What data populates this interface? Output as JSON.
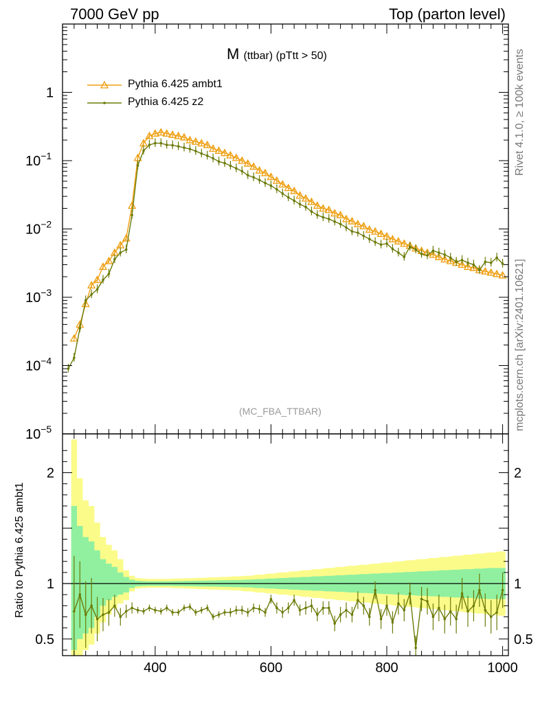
{
  "header": {
    "left": "7000 GeV pp",
    "right": "Top (parton level)"
  },
  "side_labels": {
    "rivet": "Rivet 4.1.0, ≥ 100k events",
    "mcplots": "mcplots.cern.ch [arXiv:2401.10621]"
  },
  "colors": {
    "ambt1": "#ee9f11",
    "z2": "#6b7a06",
    "band_inner": "#90f0a0",
    "band_outer": "#fbfb8a",
    "axis": "#000000"
  },
  "chart_data": [
    {
      "type": "line",
      "title": "M",
      "title_sub": "(ttbar) (pTtt > 50)",
      "annotation": "(MC_FBA_TTBAR)",
      "xlim": [
        240,
        1010
      ],
      "ylim": [
        1e-05,
        10
      ],
      "yscale": "log",
      "ylabel": "",
      "y_tick_labels": [
        "1",
        "10^{-1}",
        "10^{-2}",
        "10^{-3}",
        "10^{-4}",
        "10^{-5}"
      ],
      "legend": [
        "Pythia 6.425 ambt1",
        "Pythia 6.425 z2"
      ],
      "legend_position": "top-left",
      "series": [
        {
          "name": "Pythia 6.425 ambt1",
          "marker": "triangle",
          "x": [
            260,
            270,
            280,
            290,
            300,
            310,
            320,
            330,
            340,
            350,
            360,
            370,
            380,
            390,
            400,
            410,
            420,
            430,
            440,
            450,
            460,
            470,
            480,
            490,
            500,
            510,
            520,
            530,
            540,
            550,
            560,
            570,
            580,
            590,
            600,
            610,
            620,
            630,
            640,
            650,
            660,
            670,
            680,
            690,
            700,
            710,
            720,
            730,
            740,
            750,
            760,
            770,
            780,
            790,
            800,
            810,
            820,
            830,
            840,
            850,
            860,
            870,
            880,
            890,
            900,
            910,
            920,
            930,
            940,
            950,
            960,
            970,
            980,
            990,
            1000
          ],
          "y": [
            0.00025,
            0.0004,
            0.0008,
            0.0015,
            0.0018,
            0.0028,
            0.0034,
            0.0045,
            0.0058,
            0.0073,
            0.022,
            0.11,
            0.18,
            0.23,
            0.25,
            0.26,
            0.25,
            0.24,
            0.23,
            0.22,
            0.2,
            0.19,
            0.18,
            0.17,
            0.15,
            0.14,
            0.13,
            0.12,
            0.11,
            0.1,
            0.091,
            0.082,
            0.072,
            0.066,
            0.058,
            0.051,
            0.045,
            0.04,
            0.036,
            0.031,
            0.028,
            0.025,
            0.022,
            0.02,
            0.019,
            0.017,
            0.016,
            0.014,
            0.013,
            0.0118,
            0.011,
            0.0098,
            0.0092,
            0.0085,
            0.0078,
            0.0071,
            0.0066,
            0.0061,
            0.0057,
            0.0052,
            0.0048,
            0.0045,
            0.0042,
            0.0039,
            0.0036,
            0.0034,
            0.0032,
            0.003,
            0.0028,
            0.0027,
            0.0025,
            0.0024,
            0.0023,
            0.0022,
            0.0021
          ],
          "err_frac": 0.08
        },
        {
          "name": "Pythia 6.425 z2",
          "marker": "dot",
          "x": [
            250,
            260,
            270,
            280,
            290,
            300,
            310,
            320,
            330,
            340,
            350,
            360,
            370,
            380,
            390,
            400,
            410,
            420,
            430,
            440,
            450,
            460,
            470,
            480,
            490,
            500,
            510,
            520,
            530,
            540,
            550,
            560,
            570,
            580,
            590,
            600,
            610,
            620,
            630,
            640,
            650,
            660,
            670,
            680,
            690,
            700,
            710,
            720,
            730,
            740,
            750,
            760,
            770,
            780,
            790,
            800,
            810,
            820,
            830,
            840,
            850,
            860,
            870,
            880,
            890,
            900,
            910,
            920,
            930,
            940,
            950,
            960,
            970,
            980,
            990,
            1000
          ],
          "y": [
            9e-05,
            0.00013,
            0.00035,
            0.0009,
            0.0011,
            0.0013,
            0.0018,
            0.0022,
            0.0036,
            0.0045,
            0.005,
            0.016,
            0.085,
            0.14,
            0.17,
            0.18,
            0.18,
            0.17,
            0.168,
            0.162,
            0.155,
            0.148,
            0.138,
            0.127,
            0.118,
            0.108,
            0.097,
            0.092,
            0.084,
            0.077,
            0.07,
            0.061,
            0.057,
            0.052,
            0.047,
            0.043,
            0.038,
            0.033,
            0.029,
            0.026,
            0.023,
            0.021,
            0.018,
            0.016,
            0.0148,
            0.014,
            0.0128,
            0.0118,
            0.0105,
            0.0092,
            0.0088,
            0.0079,
            0.0071,
            0.0064,
            0.0059,
            0.0061,
            0.0051,
            0.0045,
            0.0039,
            0.0055,
            0.005,
            0.0043,
            0.0041,
            0.0048,
            0.0045,
            0.0042,
            0.0038,
            0.0033,
            0.0035,
            0.0032,
            0.003,
            0.0025,
            0.0033,
            0.0032,
            0.0038,
            0.0031
          ],
          "err_frac": 0.12
        }
      ]
    },
    {
      "type": "line",
      "title": "",
      "ylabel": "Ratio to Pythia 6.425 ambt1",
      "xlim": [
        240,
        1010
      ],
      "ylim": [
        0.35,
        2.35
      ],
      "x_ticks": [
        400,
        600,
        800,
        1000
      ],
      "y_ticks": [
        0.5,
        1,
        2
      ],
      "y_tick_labels": [
        "0.5",
        "1",
        "2"
      ],
      "reference_line": 1,
      "band": {
        "x": [
          260,
          270,
          280,
          290,
          300,
          310,
          320,
          330,
          340,
          350,
          360,
          370,
          380,
          390,
          400,
          420,
          440,
          460,
          480,
          500,
          520,
          540,
          560,
          580,
          600,
          620,
          640,
          660,
          680,
          700,
          720,
          740,
          760,
          780,
          800,
          820,
          840,
          860,
          880,
          900,
          920,
          940,
          960,
          980,
          1000
        ],
        "inner_lo": [
          0.4,
          0.5,
          0.55,
          0.6,
          0.7,
          0.8,
          0.85,
          0.88,
          0.9,
          0.92,
          0.96,
          0.975,
          0.978,
          0.98,
          0.98,
          0.98,
          0.978,
          0.976,
          0.974,
          0.972,
          0.97,
          0.968,
          0.965,
          0.96,
          0.955,
          0.95,
          0.945,
          0.94,
          0.935,
          0.93,
          0.925,
          0.92,
          0.915,
          0.91,
          0.905,
          0.9,
          0.895,
          0.89,
          0.885,
          0.88,
          0.875,
          0.87,
          0.865,
          0.86,
          0.86
        ],
        "inner_hi": [
          1.7,
          1.52,
          1.42,
          1.38,
          1.3,
          1.22,
          1.18,
          1.15,
          1.1,
          1.06,
          1.035,
          1.025,
          1.022,
          1.02,
          1.02,
          1.02,
          1.022,
          1.024,
          1.026,
          1.028,
          1.03,
          1.032,
          1.035,
          1.04,
          1.045,
          1.05,
          1.055,
          1.06,
          1.065,
          1.07,
          1.075,
          1.08,
          1.085,
          1.09,
          1.095,
          1.1,
          1.105,
          1.11,
          1.115,
          1.12,
          1.125,
          1.13,
          1.135,
          1.14,
          1.14
        ],
        "outer_lo": [
          0.2,
          0.3,
          0.4,
          0.45,
          0.55,
          0.65,
          0.72,
          0.78,
          0.82,
          0.85,
          0.93,
          0.955,
          0.96,
          0.962,
          0.962,
          0.962,
          0.958,
          0.954,
          0.95,
          0.946,
          0.942,
          0.938,
          0.93,
          0.92,
          0.91,
          0.9,
          0.89,
          0.88,
          0.87,
          0.86,
          0.85,
          0.84,
          0.83,
          0.82,
          0.81,
          0.8,
          0.79,
          0.78,
          0.77,
          0.76,
          0.75,
          0.74,
          0.73,
          0.72,
          0.71
        ],
        "outer_hi": [
          2.3,
          1.95,
          1.75,
          1.7,
          1.55,
          1.42,
          1.35,
          1.3,
          1.22,
          1.12,
          1.07,
          1.05,
          1.045,
          1.042,
          1.042,
          1.042,
          1.045,
          1.048,
          1.052,
          1.056,
          1.06,
          1.065,
          1.07,
          1.08,
          1.09,
          1.1,
          1.11,
          1.12,
          1.13,
          1.14,
          1.15,
          1.16,
          1.17,
          1.18,
          1.19,
          1.2,
          1.21,
          1.22,
          1.23,
          1.24,
          1.25,
          1.26,
          1.27,
          1.28,
          1.29
        ]
      },
      "series": [
        {
          "name": "Pythia 6.425 z2",
          "x": [
            260,
            270,
            280,
            290,
            300,
            310,
            320,
            330,
            340,
            350,
            360,
            370,
            380,
            390,
            400,
            410,
            420,
            430,
            440,
            450,
            460,
            470,
            480,
            490,
            500,
            510,
            520,
            530,
            540,
            550,
            560,
            570,
            580,
            590,
            600,
            610,
            620,
            630,
            640,
            650,
            660,
            670,
            680,
            690,
            700,
            710,
            720,
            730,
            740,
            750,
            760,
            770,
            780,
            790,
            800,
            810,
            820,
            830,
            840,
            850,
            860,
            870,
            880,
            890,
            900,
            910,
            920,
            930,
            940,
            950,
            960,
            970,
            980,
            990,
            1000
          ],
          "y": [
            0.75,
            0.9,
            0.72,
            0.8,
            0.68,
            0.72,
            0.74,
            0.8,
            0.7,
            0.75,
            0.78,
            0.76,
            0.75,
            0.78,
            0.76,
            0.75,
            0.78,
            0.74,
            0.74,
            0.78,
            0.79,
            0.74,
            0.76,
            0.78,
            0.7,
            0.72,
            0.74,
            0.74,
            0.76,
            0.76,
            0.74,
            0.78,
            0.77,
            0.74,
            0.86,
            0.78,
            0.74,
            0.78,
            0.85,
            0.76,
            0.78,
            0.8,
            0.72,
            0.78,
            0.78,
            0.64,
            0.72,
            0.76,
            0.72,
            0.85,
            0.8,
            0.7,
            0.94,
            0.68,
            0.8,
            0.65,
            0.82,
            0.76,
            0.91,
            0.42,
            0.86,
            0.84,
            0.7,
            0.78,
            0.68,
            0.75,
            0.68,
            0.91,
            0.75,
            0.8,
            0.94,
            0.76,
            0.7,
            0.74,
            0.94
          ],
          "err": [
            0.5,
            0.3,
            0.3,
            0.25,
            0.2,
            0.15,
            0.12,
            0.1,
            0.08,
            0.06,
            0.05,
            0.03,
            0.03,
            0.03,
            0.03,
            0.03,
            0.03,
            0.03,
            0.03,
            0.03,
            0.03,
            0.03,
            0.03,
            0.03,
            0.03,
            0.03,
            0.03,
            0.04,
            0.04,
            0.04,
            0.04,
            0.04,
            0.04,
            0.04,
            0.04,
            0.05,
            0.05,
            0.05,
            0.05,
            0.05,
            0.06,
            0.06,
            0.06,
            0.06,
            0.06,
            0.07,
            0.07,
            0.07,
            0.07,
            0.08,
            0.08,
            0.08,
            0.08,
            0.09,
            0.09,
            0.1,
            0.1,
            0.1,
            0.1,
            0.11,
            0.11,
            0.12,
            0.12,
            0.12,
            0.13,
            0.13,
            0.13,
            0.14,
            0.14,
            0.14,
            0.15,
            0.15,
            0.15,
            0.16,
            0.16
          ]
        }
      ]
    }
  ]
}
